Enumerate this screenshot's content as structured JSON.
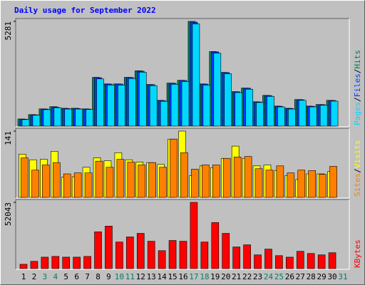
{
  "chart_data": {
    "type": "bar",
    "title": "Daily usage for September 2022",
    "title_color": "#0000ff",
    "categories": [
      "1",
      "2",
      "3",
      "4",
      "5",
      "6",
      "7",
      "8",
      "9",
      "10",
      "11",
      "12",
      "13",
      "14",
      "15",
      "16",
      "17",
      "18",
      "19",
      "20",
      "21",
      "22",
      "23",
      "24",
      "25",
      "26",
      "27",
      "28",
      "29",
      "30",
      "31"
    ],
    "category_colors": [
      "#000000",
      "#000000",
      "#00805c",
      "#00805c",
      "#000000",
      "#000000",
      "#000000",
      "#000000",
      "#000000",
      "#00805c",
      "#00805c",
      "#000000",
      "#000000",
      "#000000",
      "#000000",
      "#000000",
      "#00805c",
      "#00805c",
      "#000000",
      "#000000",
      "#000000",
      "#000000",
      "#000000",
      "#00805c",
      "#00805c",
      "#000000",
      "#000000",
      "#000000",
      "#000000",
      "#000000",
      "#00805c"
    ],
    "separator": "/",
    "panels": [
      {
        "ylim": [
          0,
          5281
        ],
        "yticks": [
          5281
        ],
        "series": [
          {
            "name": "Hits",
            "color": "#00805c",
            "values": [
              360,
              580,
              870,
              980,
              900,
              900,
              870,
              2460,
              2130,
              2130,
              2460,
              2790,
              2100,
              1300,
              2170,
              2310,
              5281,
              2130,
              3760,
              2710,
              1740,
              1920,
              1230,
              1550,
              1010,
              900,
              1340,
              1010,
              1090,
              1300,
              null
            ]
          },
          {
            "name": "Files",
            "color": "#0040ff",
            "values": [
              350,
              570,
              860,
              960,
              890,
              890,
              860,
              2440,
              2120,
              2120,
              2450,
              2770,
              2090,
              1290,
              2160,
              2300,
              5240,
              2120,
              3740,
              2700,
              1730,
              1910,
              1220,
              1540,
              1000,
              890,
              1330,
              1000,
              1080,
              1290,
              null
            ]
          },
          {
            "name": "Pages",
            "color": "#00d8ff",
            "values": [
              330,
              550,
              830,
              930,
              860,
              860,
              840,
              2380,
              2070,
              2070,
              2400,
              2720,
              2040,
              1250,
              2110,
              2250,
              5150,
              2070,
              3680,
              2640,
              1690,
              1860,
              1190,
              1500,
              970,
              860,
              1300,
              970,
              1050,
              1260,
              null
            ]
          }
        ]
      },
      {
        "ylim": [
          0,
          141
        ],
        "yticks": [
          141
        ],
        "series": [
          {
            "name": "Visits",
            "color": "#ffff00",
            "values": [
              92,
              80,
              81,
              98,
              43,
              44,
              64,
              84,
              78,
              95,
              80,
              75,
              74,
              70,
              124,
              141,
              46,
              67,
              63,
              83,
              109,
              83,
              67,
              69,
              57,
              46,
              38,
              50,
              50,
              55,
              null
            ]
          },
          {
            "name": "Sites",
            "color": "#ff8000",
            "values": [
              84,
              58,
              69,
              74,
              50,
              52,
              52,
              77,
              64,
              81,
              75,
              69,
              74,
              64,
              124,
              95,
              60,
              69,
              69,
              83,
              86,
              87,
              61,
              58,
              67,
              52,
              58,
              57,
              49,
              66,
              null
            ]
          }
        ]
      },
      {
        "ylim": [
          0,
          52043
        ],
        "yticks": [
          52043
        ],
        "series": [
          {
            "name": "KBytes",
            "color": "#ff0000",
            "values": [
              3400,
              5700,
              9000,
              9600,
              9000,
              9000,
              9600,
              28900,
              33400,
              20900,
              24900,
              27700,
              21500,
              14100,
              22100,
              21500,
              52043,
              20900,
              36200,
              27700,
              17000,
              18700,
              10800,
              15300,
              10200,
              9000,
              13600,
              11900,
              10800,
              12500,
              null
            ]
          }
        ]
      }
    ]
  }
}
